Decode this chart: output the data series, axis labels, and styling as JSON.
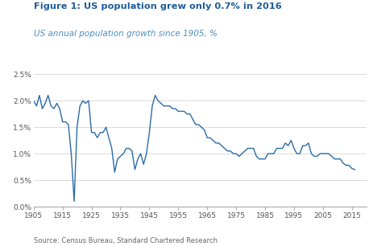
{
  "title": "Figure 1: US population grew only 0.7% in 2016",
  "subtitle": "US annual population growth since 1905, %",
  "source": "Source: Census Bureau, Standard Chartered Research",
  "title_color": "#1F5C99",
  "subtitle_color": "#4A8FC0",
  "line_color": "#2B6CA8",
  "background_color": "#FFFFFF",
  "xlim": [
    1905,
    2020
  ],
  "ylim": [
    0.0,
    0.026
  ],
  "xticks": [
    1905,
    1915,
    1925,
    1935,
    1945,
    1955,
    1965,
    1975,
    1985,
    1995,
    2005,
    2015
  ],
  "yticks": [
    0.0,
    0.005,
    0.01,
    0.015,
    0.02,
    0.025
  ],
  "ytick_labels": [
    "0.0%",
    "0.5%",
    "1.0%",
    "1.5%",
    "2.0%",
    "2.5%"
  ],
  "years": [
    1905,
    1906,
    1907,
    1908,
    1909,
    1910,
    1911,
    1912,
    1913,
    1914,
    1915,
    1916,
    1917,
    1918,
    1919,
    1920,
    1921,
    1922,
    1923,
    1924,
    1925,
    1926,
    1927,
    1928,
    1929,
    1930,
    1931,
    1932,
    1933,
    1934,
    1935,
    1936,
    1937,
    1938,
    1939,
    1940,
    1941,
    1942,
    1943,
    1944,
    1945,
    1946,
    1947,
    1948,
    1949,
    1950,
    1951,
    1952,
    1953,
    1954,
    1955,
    1956,
    1957,
    1958,
    1959,
    1960,
    1961,
    1962,
    1963,
    1964,
    1965,
    1966,
    1967,
    1968,
    1969,
    1970,
    1971,
    1972,
    1973,
    1974,
    1975,
    1976,
    1977,
    1978,
    1979,
    1980,
    1981,
    1982,
    1983,
    1984,
    1985,
    1986,
    1987,
    1988,
    1989,
    1990,
    1991,
    1992,
    1993,
    1994,
    1995,
    1996,
    1997,
    1998,
    1999,
    2000,
    2001,
    2002,
    2003,
    2004,
    2005,
    2006,
    2007,
    2008,
    2009,
    2010,
    2011,
    2012,
    2013,
    2014,
    2015,
    2016
  ],
  "values": [
    0.02,
    0.019,
    0.021,
    0.0185,
    0.0195,
    0.021,
    0.019,
    0.0185,
    0.0195,
    0.0185,
    0.016,
    0.016,
    0.0155,
    0.01,
    0.001,
    0.015,
    0.019,
    0.02,
    0.0195,
    0.02,
    0.014,
    0.014,
    0.013,
    0.014,
    0.014,
    0.015,
    0.013,
    0.011,
    0.0065,
    0.009,
    0.0095,
    0.01,
    0.011,
    0.011,
    0.0105,
    0.007,
    0.009,
    0.01,
    0.008,
    0.01,
    0.014,
    0.019,
    0.021,
    0.02,
    0.0195,
    0.019,
    0.019,
    0.019,
    0.0185,
    0.0185,
    0.018,
    0.018,
    0.018,
    0.0175,
    0.0175,
    0.0165,
    0.0155,
    0.0155,
    0.015,
    0.0145,
    0.013,
    0.013,
    0.0125,
    0.012,
    0.012,
    0.0115,
    0.011,
    0.0105,
    0.0105,
    0.01,
    0.01,
    0.0095,
    0.01,
    0.0105,
    0.011,
    0.011,
    0.011,
    0.0095,
    0.009,
    0.009,
    0.009,
    0.01,
    0.01,
    0.01,
    0.011,
    0.011,
    0.011,
    0.012,
    0.0115,
    0.0125,
    0.011,
    0.01,
    0.01,
    0.0115,
    0.0115,
    0.012,
    0.01,
    0.0095,
    0.0095,
    0.01,
    0.01,
    0.01,
    0.01,
    0.0095,
    0.009,
    0.009,
    0.009,
    0.0082,
    0.0078,
    0.0078,
    0.0072,
    0.007
  ]
}
